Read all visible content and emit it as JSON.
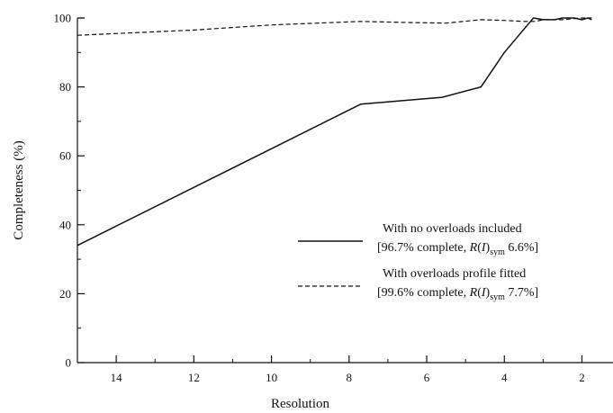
{
  "chart_data": {
    "type": "line",
    "xlabel": "Resolution",
    "ylabel": "Completeness (%)",
    "xlim": [
      15,
      1.2
    ],
    "ylim": [
      0,
      100
    ],
    "x_ticks": [
      14,
      12,
      10,
      8,
      6,
      4,
      2
    ],
    "y_ticks": [
      0,
      20,
      40,
      60,
      80,
      100
    ],
    "x_ticks_minor": [
      15,
      13,
      11,
      9,
      7,
      5,
      3
    ],
    "y_ticks_minor": [
      10,
      30,
      50,
      70,
      90
    ],
    "grid": false,
    "legend_position": "center-right",
    "series": [
      {
        "name": "With no overloads included",
        "note_prefix": "[96.7% complete, ",
        "note_italic": "R",
        "note_paren_open": "(",
        "note_italic2": "I",
        "note_paren_close": ")",
        "note_sub": "sym",
        "note_suffix": " 6.6%]",
        "style": "solid",
        "x": [
          15,
          7.7,
          5.6,
          4.6,
          4.0,
          3.4,
          3.25,
          3.0,
          2.7,
          2.5,
          2.2,
          2.0,
          1.85,
          1.75
        ],
        "y": [
          34,
          75,
          77,
          80,
          90,
          98,
          100,
          99.5,
          99.5,
          100,
          100,
          99.5,
          100,
          99.5
        ]
      },
      {
        "name": "With overloads profile fitted",
        "note_prefix": "[99.6% complete, ",
        "note_italic": "R",
        "note_paren_open": "(",
        "note_italic2": "I",
        "note_paren_close": ")",
        "note_sub": "sym",
        "note_suffix": " 7.7%]",
        "style": "dashed",
        "x": [
          15,
          12,
          10,
          7.7,
          6.5,
          5.5,
          4.6,
          4.0,
          3.5,
          3.2,
          3.0,
          2.5,
          2.0,
          1.75
        ],
        "y": [
          95,
          96.5,
          98,
          99,
          98.7,
          98.5,
          99.5,
          99.3,
          99,
          99,
          99.5,
          99.5,
          100,
          100
        ]
      }
    ]
  }
}
